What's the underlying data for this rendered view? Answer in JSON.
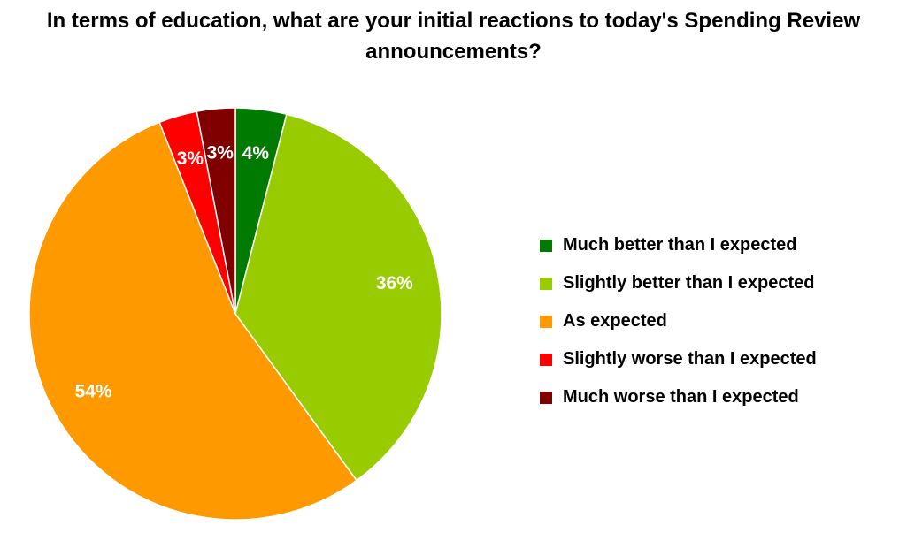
{
  "chart_data": {
    "type": "pie",
    "title": "In terms of education, what are your initial reactions to today's Spending Review announcements?",
    "title_lines": [
      "In terms of education, what are your initial reactions to today's Spending Review",
      "announcements?"
    ],
    "slices": [
      {
        "label": "Much better than I expected",
        "value": 4,
        "display": "4%",
        "color": "#007A00"
      },
      {
        "label": "Slightly better than I expected",
        "value": 36,
        "display": "36%",
        "color": "#99CC00"
      },
      {
        "label": "As expected",
        "value": 54,
        "display": "54%",
        "color": "#FF9900"
      },
      {
        "label": "Slightly worse than I expected",
        "value": 3,
        "display": "3%",
        "color": "#FF0000"
      },
      {
        "label": "Much worse than I expected",
        "value": 3,
        "display": "3%",
        "color": "#800000"
      }
    ],
    "legend_position": "right",
    "start_angle": "12 o'clock",
    "direction": "clockwise"
  }
}
